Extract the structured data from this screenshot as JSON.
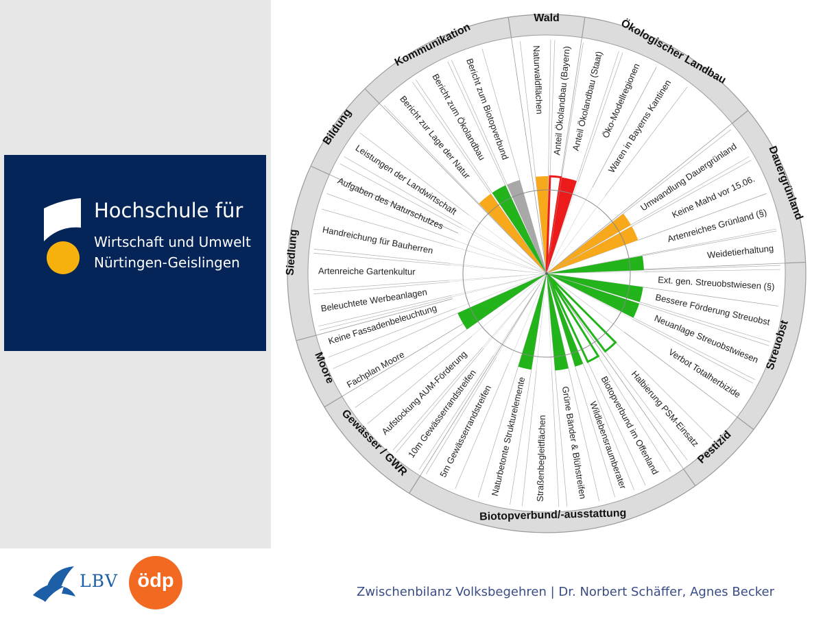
{
  "logo": {
    "line1": "Hochschule für",
    "line2": "Wirtschaft und Umwelt",
    "line3": "Nürtingen-Geislingen",
    "shape_color": "#ffffff",
    "dot_color": "#f6b10d",
    "background": "#052558"
  },
  "footer": {
    "text": "Zwischenbilanz Volksbegehren  | Dr. Norbert Schäffer, Agnes Becker"
  },
  "partners": {
    "lbv": "LBV",
    "odp": "ödp",
    "lbv_color": "#1d5fa6",
    "odp_color": "#f26a21"
  },
  "chart_data": {
    "type": "radial-status-wheel",
    "title": "",
    "status_legend": {
      "green": "#22b41a",
      "orange": "#f7a81b",
      "red": "#ec1a1a",
      "grey": "#a8a8a8",
      "none": "#ffffff"
    },
    "categories": [
      {
        "label": "Wald",
        "start": -8.5,
        "end": 8.5
      },
      {
        "label": "Ökologischer Landbau",
        "start": 8.5,
        "end": 51
      },
      {
        "label": "Dauergrünland",
        "start": 51,
        "end": 87.5
      },
      {
        "label": "Streuobst",
        "start": 87.5,
        "end": 127
      },
      {
        "label": "Pestizid",
        "start": 127,
        "end": 145
      },
      {
        "label": "Biotopverbund/-ausstattung",
        "start": 145,
        "end": 212
      },
      {
        "label": "Gewässer / GWR",
        "start": 212,
        "end": 239
      },
      {
        "label": "Moore",
        "start": 239,
        "end": 255
      },
      {
        "label": "Siedlung",
        "start": 255,
        "end": 294.5
      },
      {
        "label": "Bildung",
        "start": 294.5,
        "end": 315.5
      },
      {
        "label": "Kommunikation",
        "start": 315.5,
        "end": 351.5
      }
    ],
    "measures": [
      {
        "label": "Naturwaldflächen",
        "status": "orange",
        "start": -6.5,
        "end": 1
      },
      {
        "label": "Anteil Ökolandbau (Bayern)",
        "status": "outline-red",
        "start": 2,
        "end": 8.5
      },
      {
        "label": "Anteil Ökolandbau (Staat)",
        "status": "red",
        "start": 9,
        "end": 18
      },
      {
        "label": "Öko-Modellregionen",
        "status": "none",
        "start": 19,
        "end": 28
      },
      {
        "label": "Waren in Bayerns Kantinen",
        "status": "none",
        "start": 28,
        "end": 37
      },
      {
        "label": "Umwandlung Dauergrünland",
        "status": "orange",
        "start": 52,
        "end": 60
      },
      {
        "label": "Keine Mahd vor 15.06.",
        "status": "orange",
        "start": 61,
        "end": 70
      },
      {
        "label": "Artenreiches Grünland (§)",
        "status": "none",
        "start": 70,
        "end": 79
      },
      {
        "label": "Weidetierhaltung",
        "status": "green",
        "start": 79.5,
        "end": 88
      },
      {
        "label": "Ext. gen. Streuobstwiesen (§)",
        "status": "none",
        "start": 89,
        "end": 98
      },
      {
        "label": "Bessere Förderung Streuobst",
        "status": "green",
        "start": 98,
        "end": 107
      },
      {
        "label": "Neuanlage Streuobstwiesen",
        "status": "green",
        "start": 108,
        "end": 117
      },
      {
        "label": "Verbot Totalherbizide",
        "status": "none",
        "start": 118,
        "end": 127
      },
      {
        "label": "Halbierung PSM-Einsatz",
        "status": "outline-green",
        "start": 135,
        "end": 143
      },
      {
        "label": "Biotopverbund im Offenland",
        "status": "outline-green",
        "start": 148,
        "end": 155
      },
      {
        "label": "Wildlebensraumberater",
        "status": "green",
        "start": 158,
        "end": 163
      },
      {
        "label": "Grüne Bänder & Blühstreifen",
        "status": "green",
        "start": 167,
        "end": 175
      },
      {
        "label": "Straßenbegleitflächen",
        "status": "none",
        "start": 177,
        "end": 186
      },
      {
        "label": "Naturbetonte Strukturelemente",
        "status": "green",
        "start": 189,
        "end": 197
      },
      {
        "label": "5m Gewässerrandstreifen",
        "status": "none",
        "start": 203,
        "end": 211
      },
      {
        "label": "10m Gewässerrandstreifen",
        "status": "none",
        "start": 213,
        "end": 220
      },
      {
        "label": "Aufstockung AUM-Förderung",
        "status": "none",
        "start": 221,
        "end": 230
      },
      {
        "label": "Fachplan Moore",
        "status": "green",
        "start": 235,
        "end": 246
      },
      {
        "label": "Keine Fassadenbeleuchtung",
        "status": "none",
        "start": 249,
        "end": 256
      },
      {
        "label": "Beleuchtete Werbeanlagen",
        "status": "none",
        "start": 257,
        "end": 265
      },
      {
        "label": "Artenreiche Gartenkultur",
        "status": "none",
        "start": 266,
        "end": 275
      },
      {
        "label": "Handreichung für Bauherren",
        "status": "none",
        "start": 276,
        "end": 286
      },
      {
        "label": "Aufgaben des Naturschutzes",
        "status": "none",
        "start": 290,
        "end": 298
      },
      {
        "label": "Leistungen der Landwirtschaft",
        "status": "none",
        "start": 300,
        "end": 307
      },
      {
        "label": "Bericht zur Lage der Natur",
        "status": "orange",
        "start": 316,
        "end": 325
      },
      {
        "label": "Bericht zum Ökolandbau",
        "status": "green",
        "start": 326,
        "end": 335
      },
      {
        "label": "Bericht zum Biotopverbund",
        "status": "grey",
        "start": 336,
        "end": 344
      }
    ]
  }
}
